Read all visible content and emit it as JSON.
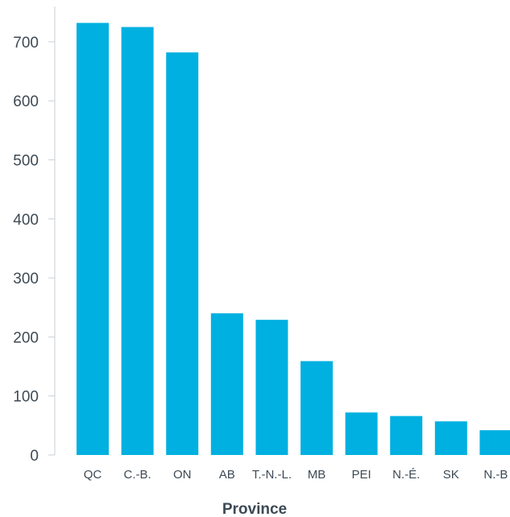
{
  "chart_data": {
    "type": "bar",
    "title": "",
    "xlabel": "Province",
    "ylabel": "",
    "categories": [
      "QC",
      "C.-B.",
      "ON",
      "AB",
      "T.-N.-L.",
      "MB",
      "PEI",
      "N.-É.",
      "SK",
      "N.-B"
    ],
    "values": [
      732,
      725,
      682,
      240,
      229,
      159,
      72,
      66,
      57,
      42
    ],
    "ylim": [
      0,
      750
    ],
    "yticks": [
      0,
      100,
      200,
      300,
      400,
      500,
      600,
      700
    ],
    "grid": false,
    "legend": "none",
    "colors": {
      "bar": "#00b0e0",
      "axis": "#c8d0d6",
      "text": "#3d4a55"
    }
  }
}
